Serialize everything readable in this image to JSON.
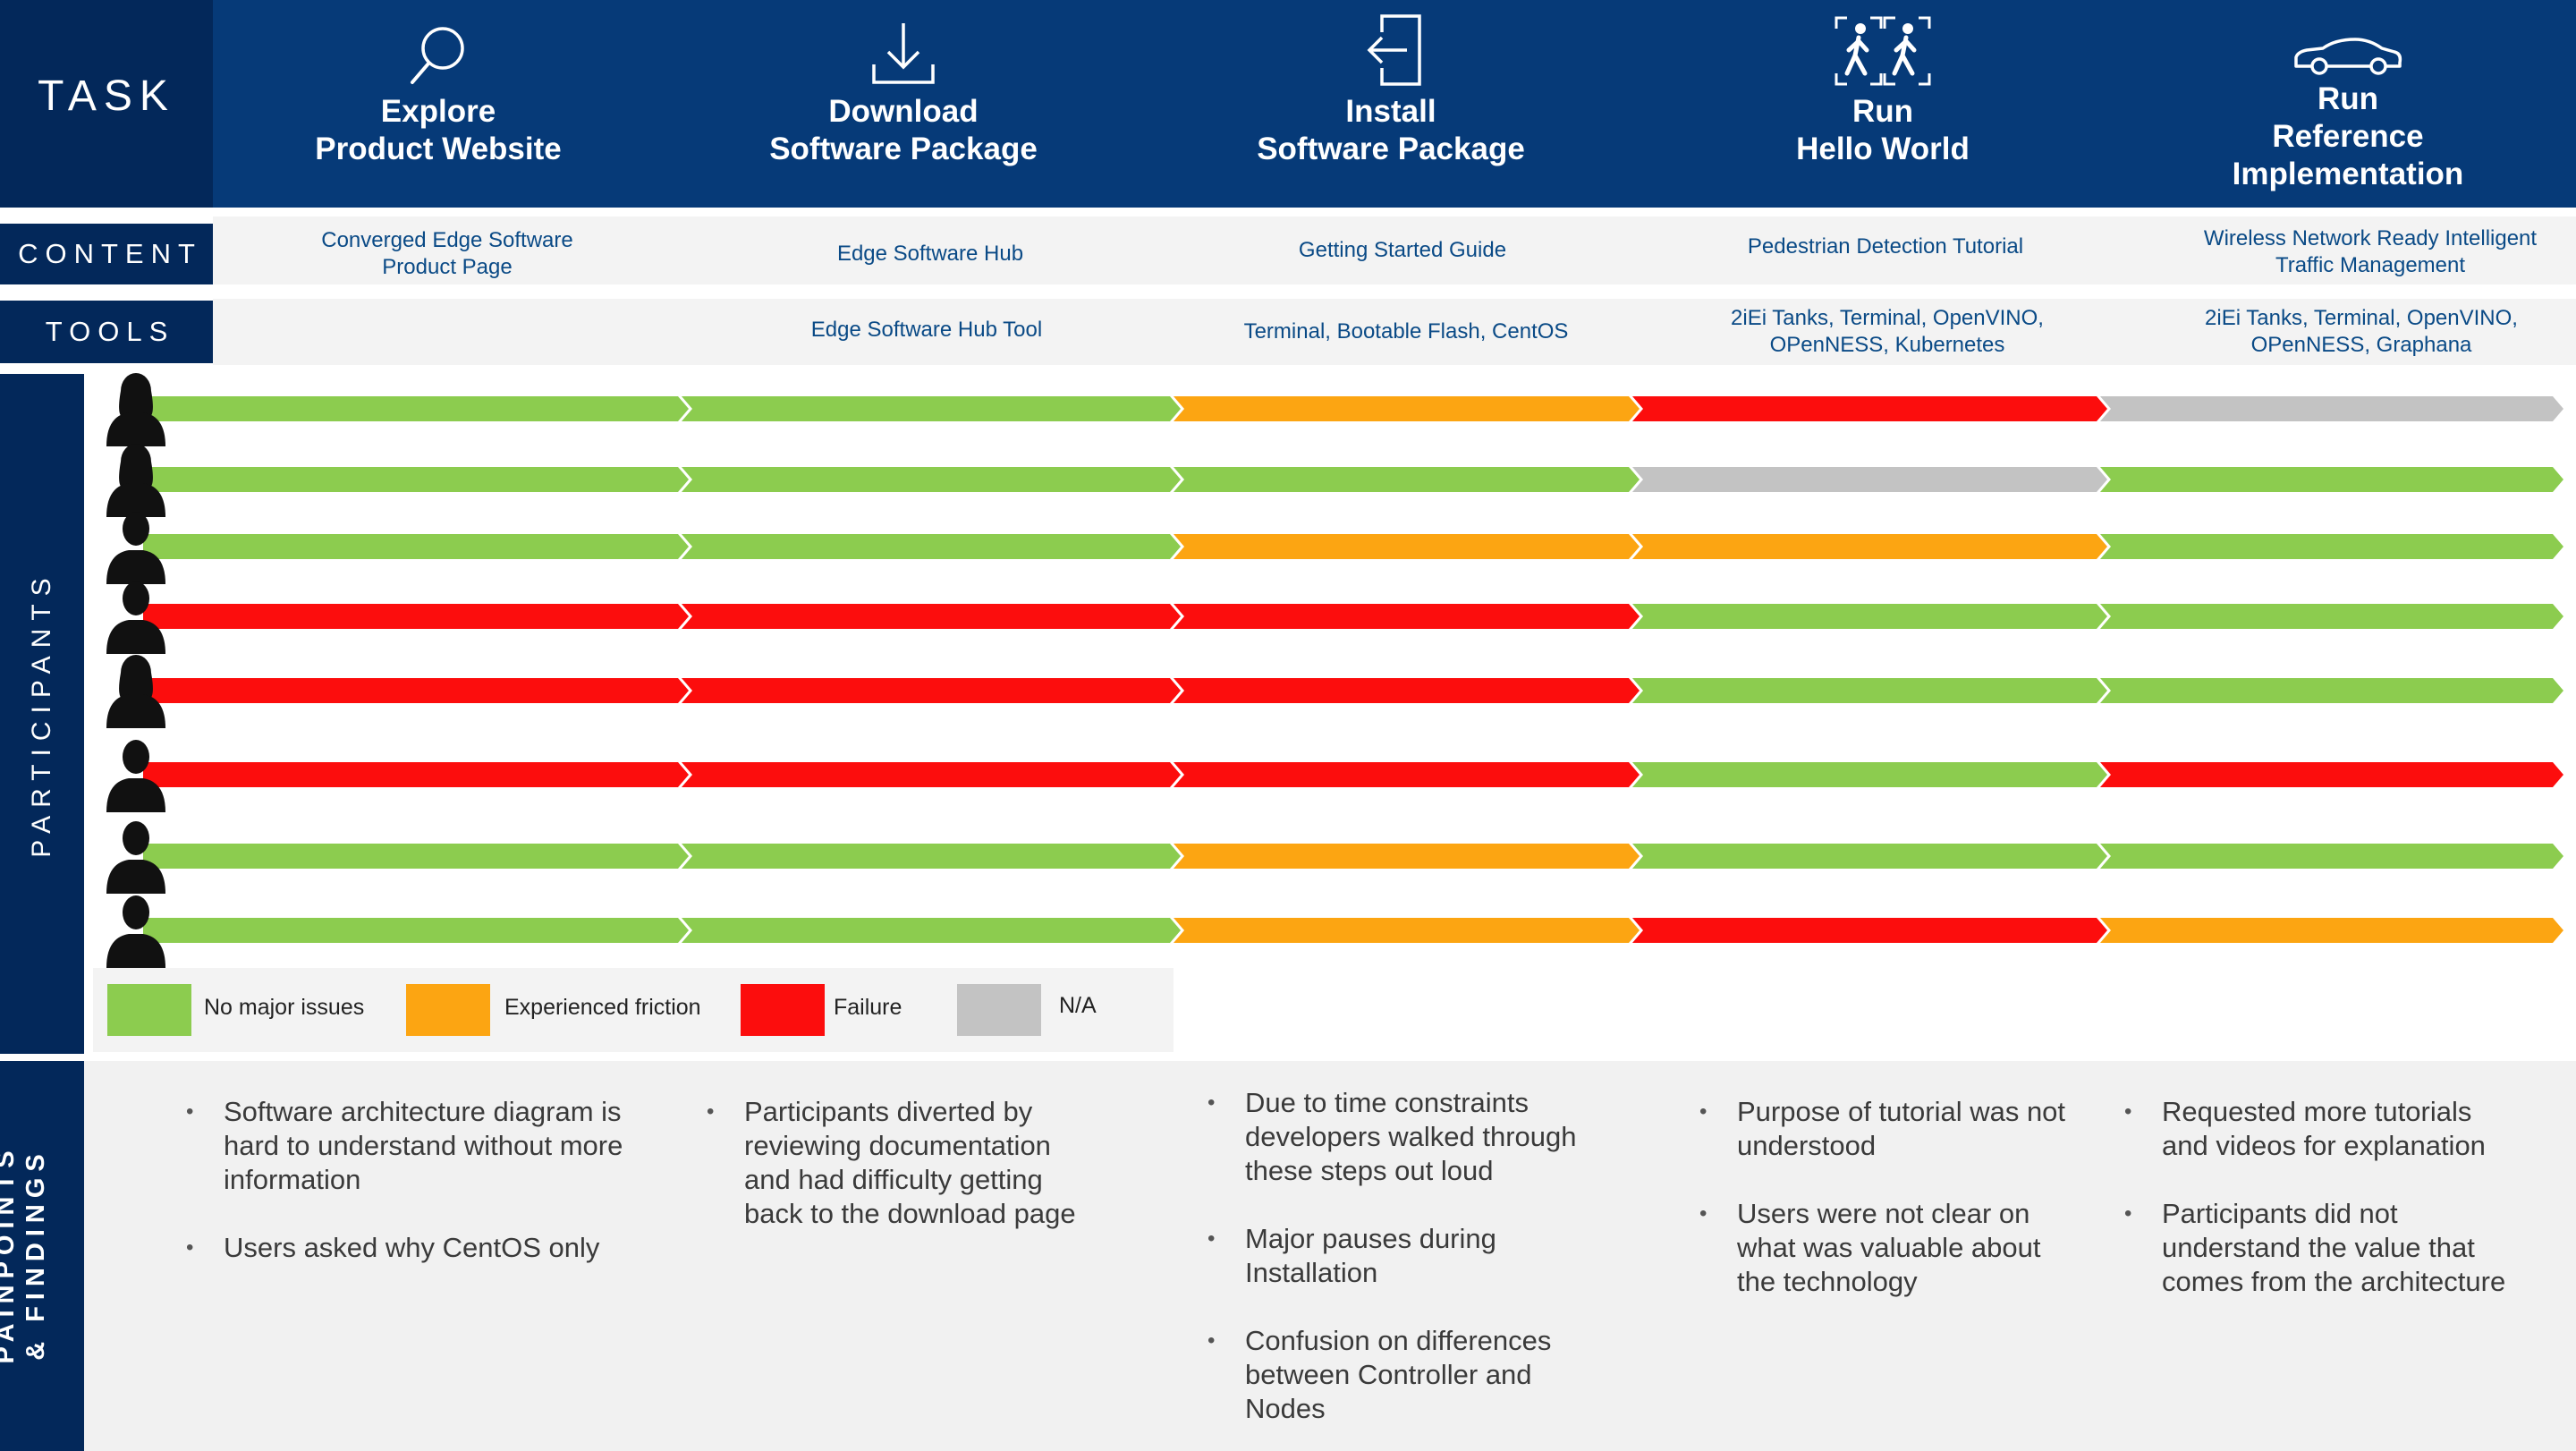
{
  "task_label": "TASK",
  "content_label": "CONTENT",
  "tools_label": "TOOLS",
  "participants_label": "PARTICIPANTS",
  "painpoints_label_1": "PAINPOINTS",
  "painpoints_label_2": "& FINDINGS",
  "tasks": [
    {
      "title_1": "Explore",
      "title_2": "Product Website",
      "title_3": "",
      "icon": "search-icon"
    },
    {
      "title_1": "Download",
      "title_2": "Software Package",
      "title_3": "",
      "icon": "download-icon"
    },
    {
      "title_1": "Install",
      "title_2": "Software Package",
      "title_3": "",
      "icon": "install-icon"
    },
    {
      "title_1": "Run",
      "title_2": "Hello World",
      "title_3": "",
      "icon": "pedestrians-icon"
    },
    {
      "title_1": "Run",
      "title_2": "Reference",
      "title_3": "Implementation",
      "icon": "car-icon"
    }
  ],
  "content": [
    {
      "line_1": "Converged Edge Software",
      "line_2": "Product Page"
    },
    {
      "line_1": "Edge Software Hub",
      "line_2": ""
    },
    {
      "line_1": "Getting Started Guide",
      "line_2": ""
    },
    {
      "line_1": "Pedestrian Detection Tutorial",
      "line_2": ""
    },
    {
      "line_1": "Wireless Network Ready Intelligent",
      "line_2": "Traffic Management"
    }
  ],
  "tools": [
    {
      "line_1": "",
      "line_2": ""
    },
    {
      "line_1": "Edge Software Hub Tool",
      "line_2": ""
    },
    {
      "line_1": "Terminal, Bootable Flash, CentOS",
      "line_2": ""
    },
    {
      "line_1": "2iEi Tanks, Terminal, OpenVINO,",
      "line_2": "OPenNESS, Kubernetes"
    },
    {
      "line_1": "2iEi Tanks, Terminal, OpenVINO,",
      "line_2": "OPenNESS, Graphana"
    }
  ],
  "status_colors": {
    "ok": "#8ccc4f",
    "friction": "#fca512",
    "fail": "#fc0d0d",
    "na": "#c3c3c3"
  },
  "participants": [
    {
      "gender": "female",
      "statuses": [
        "ok",
        "ok",
        "friction",
        "fail",
        "na"
      ]
    },
    {
      "gender": "female",
      "statuses": [
        "ok",
        "ok",
        "ok",
        "na",
        "ok"
      ]
    },
    {
      "gender": "male",
      "statuses": [
        "ok",
        "ok",
        "friction",
        "friction",
        "ok"
      ]
    },
    {
      "gender": "male",
      "statuses": [
        "fail",
        "fail",
        "fail",
        "ok",
        "ok"
      ]
    },
    {
      "gender": "female",
      "statuses": [
        "fail",
        "fail",
        "fail",
        "ok",
        "ok"
      ]
    },
    {
      "gender": "male",
      "statuses": [
        "fail",
        "fail",
        "fail",
        "ok",
        "fail"
      ]
    },
    {
      "gender": "male",
      "statuses": [
        "ok",
        "ok",
        "friction",
        "ok",
        "ok"
      ]
    },
    {
      "gender": "male",
      "statuses": [
        "ok",
        "ok",
        "friction",
        "fail",
        "friction"
      ]
    }
  ],
  "legend": [
    {
      "key": "ok",
      "label": "No major issues"
    },
    {
      "key": "friction",
      "label": "Experienced friction"
    },
    {
      "key": "fail",
      "label": "Failure"
    },
    {
      "key": "na",
      "label": "N/A"
    }
  ],
  "findings": [
    [
      "Software architecture diagram is hard to understand without more information",
      "Users asked why CentOS only"
    ],
    [
      "Participants diverted by reviewing documentation and had difficulty getting back to the download page"
    ],
    [
      "Due to time constraints developers walked through these steps out loud",
      "Major pauses during Installation",
      "Confusion on differences between Controller and Nodes"
    ],
    [
      "Purpose of tutorial was not understood",
      "Users were not clear on what was valuable about the technology"
    ],
    [
      "Requested more tutorials and videos for explanation",
      "Participants did not understand the value that comes from the architecture"
    ]
  ]
}
